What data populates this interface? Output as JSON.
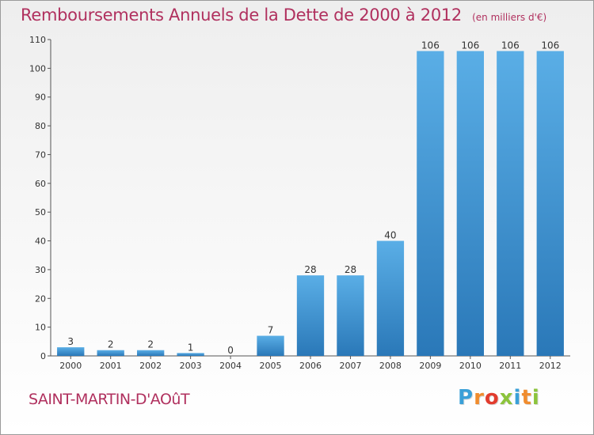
{
  "title": "Remboursements Annuels de la Dette de 2000 à 2012",
  "subtitle": "(en milliers d'€)",
  "commune": "SAINT-MARTIN-D'AOûT",
  "brand": {
    "letters": [
      "P",
      "r",
      "o",
      "x",
      "i",
      "t",
      "i"
    ],
    "colors": [
      "#3aa0d8",
      "#f08c2e",
      "#e23c2e",
      "#8cc43c",
      "#3aa0d8",
      "#f08c2e",
      "#8cc43c"
    ]
  },
  "chart_data": {
    "type": "bar",
    "title": "Remboursements Annuels de la Dette de 2000 à 2012",
    "xlabel": "",
    "ylabel": "",
    "categories": [
      "2000",
      "2001",
      "2002",
      "2003",
      "2004",
      "2005",
      "2006",
      "2007",
      "2008",
      "2009",
      "2010",
      "2011",
      "2012"
    ],
    "values": [
      3,
      2,
      2,
      1,
      0,
      7,
      28,
      28,
      40,
      106,
      106,
      106,
      106
    ],
    "ylim": [
      0,
      110
    ],
    "yticks": [
      0,
      10,
      20,
      30,
      40,
      50,
      60,
      70,
      80,
      90,
      100,
      110
    ],
    "grid": false,
    "bar_color": "#3d8fd0"
  }
}
